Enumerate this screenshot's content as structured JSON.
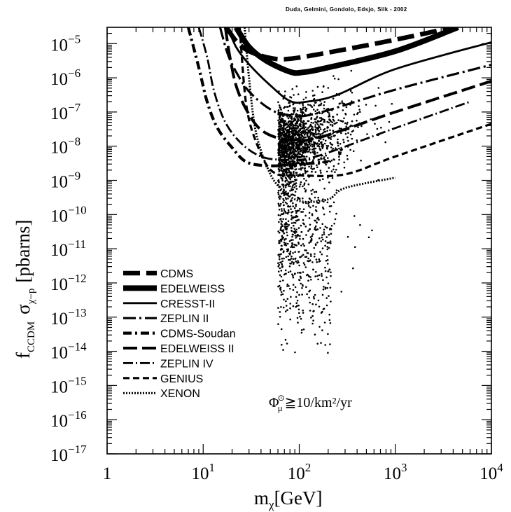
{
  "chart_data": {
    "type": "scatter",
    "credit": "Duda, Gelmini, Gondolo, Edsjo, Silk - 2002",
    "xlabel": "m",
    "xlabel_sub": "χ",
    "xlabel_unit": "[GeV]",
    "ylabel_f": "f",
    "ylabel_f_sub": "CCDM",
    "ylabel_sigma": "σ",
    "ylabel_sigma_sub": "χ−p",
    "ylabel_unit": "[pbarns]",
    "xscale": "log",
    "yscale": "log",
    "xlim": [
      1,
      10000
    ],
    "ylim": [
      1e-17,
      3e-05
    ],
    "x_tick_labels": [
      {
        "base": "1",
        "exp": ""
      },
      {
        "base": "10",
        "exp": "1"
      },
      {
        "base": "10",
        "exp": "2"
      },
      {
        "base": "10",
        "exp": "3"
      },
      {
        "base": "10",
        "exp": "4"
      }
    ],
    "y_tick_labels": [
      {
        "base": "10",
        "exp": "−5"
      },
      {
        "base": "10",
        "exp": "−6"
      },
      {
        "base": "10",
        "exp": "−7"
      },
      {
        "base": "10",
        "exp": "−8"
      },
      {
        "base": "10",
        "exp": "−9"
      },
      {
        "base": "10",
        "exp": "−10"
      },
      {
        "base": "10",
        "exp": "−11"
      },
      {
        "base": "10",
        "exp": "−12"
      },
      {
        "base": "10",
        "exp": "−13"
      },
      {
        "base": "10",
        "exp": "−14"
      },
      {
        "base": "10",
        "exp": "−15"
      },
      {
        "base": "10",
        "exp": "−16"
      },
      {
        "base": "10",
        "exp": "−17"
      }
    ],
    "legend_position": "left",
    "annotation": "Φ☉μ ≧ 10/km²/yr",
    "annotation_parts": {
      "phi": "Φ",
      "sup": "⊙",
      "sub": "μ",
      "rest": "≧10/km²/yr"
    },
    "series": [
      {
        "name": "CDMS",
        "style": "heavy-dash",
        "points": [
          [
            17.5,
            3e-05
          ],
          [
            22,
            1.2e-05
          ],
          [
            30,
            6e-06
          ],
          [
            50,
            3.8e-06
          ],
          [
            80,
            3.6e-06
          ],
          [
            200,
            5.5e-06
          ],
          [
            1000,
            1.3e-05
          ],
          [
            4000,
            3e-05
          ]
        ]
      },
      {
        "name": "EDELWEISS",
        "style": "very-thick-solid",
        "points": [
          [
            22,
            3e-05
          ],
          [
            30,
            8e-06
          ],
          [
            45,
            3.2e-06
          ],
          [
            80,
            1.5e-06
          ],
          [
            110,
            1.45e-06
          ],
          [
            200,
            2e-06
          ],
          [
            1000,
            6e-06
          ],
          [
            4500,
            3e-05
          ]
        ]
      },
      {
        "name": "CRESST-II",
        "style": "solid",
        "points": [
          [
            18,
            3e-05
          ],
          [
            22,
            8e-06
          ],
          [
            30,
            2.5e-06
          ],
          [
            50,
            6e-07
          ],
          [
            80,
            2.1e-07
          ],
          [
            120,
            2e-07
          ],
          [
            250,
            3.2e-07
          ],
          [
            1000,
            1.8e-06
          ],
          [
            10000,
            1.1e-05
          ]
        ]
      },
      {
        "name": "ZEPLIN II",
        "style": "dash-dot",
        "points": [
          [
            15,
            3e-05
          ],
          [
            18,
            5e-06
          ],
          [
            22,
            1.5e-06
          ],
          [
            30,
            4e-07
          ],
          [
            50,
            1.2e-07
          ],
          [
            80,
            8e-08
          ],
          [
            150,
            9e-08
          ],
          [
            1000,
            4.5e-07
          ],
          [
            10000,
            2.4e-06
          ]
        ]
      },
      {
        "name": "CDMS-Soudan",
        "style": "dash-dot-heavy",
        "points": [
          [
            7,
            3e-05
          ],
          [
            9,
            2e-06
          ],
          [
            11,
            2e-07
          ],
          [
            14,
            3.5e-08
          ],
          [
            20,
            9e-09
          ],
          [
            28,
            3.5e-09
          ],
          [
            45,
            2.7e-09
          ],
          [
            80,
            2.8e-09
          ],
          [
            200,
            3.5e-09
          ]
        ]
      },
      {
        "name": "EDELWEISS II",
        "style": "long-dash",
        "points": [
          [
            17,
            3e-05
          ],
          [
            19,
            4e-06
          ],
          [
            22,
            6e-07
          ],
          [
            28,
            1.2e-07
          ],
          [
            40,
            3e-08
          ],
          [
            70,
            1.6e-08
          ],
          [
            150,
            1.7e-08
          ],
          [
            1000,
            1e-07
          ],
          [
            10000,
            8e-07
          ]
        ]
      },
      {
        "name": "ZEPLIN IV",
        "style": "dash-dot-thin",
        "points": [
          [
            9,
            3e-05
          ],
          [
            11,
            4e-06
          ],
          [
            13,
            4e-07
          ],
          [
            17,
            5e-08
          ],
          [
            25,
            1.2e-08
          ],
          [
            40,
            5e-09
          ],
          [
            70,
            4e-09
          ],
          [
            150,
            5e-09
          ],
          [
            1000,
            3.4e-08
          ],
          [
            6000,
            2e-07
          ]
        ]
      },
      {
        "name": "GENIUS",
        "style": "short-dash",
        "points": [
          [
            24,
            3e-05
          ],
          [
            27,
            4e-07
          ],
          [
            30,
            6e-08
          ],
          [
            35,
            1.5e-08
          ],
          [
            45,
            3e-09
          ],
          [
            60,
            1.5e-09
          ],
          [
            100,
            1.4e-09
          ],
          [
            300,
            1.5e-09
          ],
          [
            1000,
            5e-09
          ],
          [
            10000,
            4.5e-08
          ]
        ]
      },
      {
        "name": "XENON",
        "style": "dotted",
        "points": [
          [
            27,
            3e-05
          ],
          [
            30,
            1e-06
          ],
          [
            35,
            3e-08
          ],
          [
            45,
            3e-09
          ],
          [
            60,
            7e-10
          ],
          [
            100,
            2.5e-10
          ],
          [
            200,
            2.8e-10
          ],
          [
            300,
            6e-10
          ],
          [
            1000,
            1.2e-09
          ]
        ]
      }
    ]
  }
}
